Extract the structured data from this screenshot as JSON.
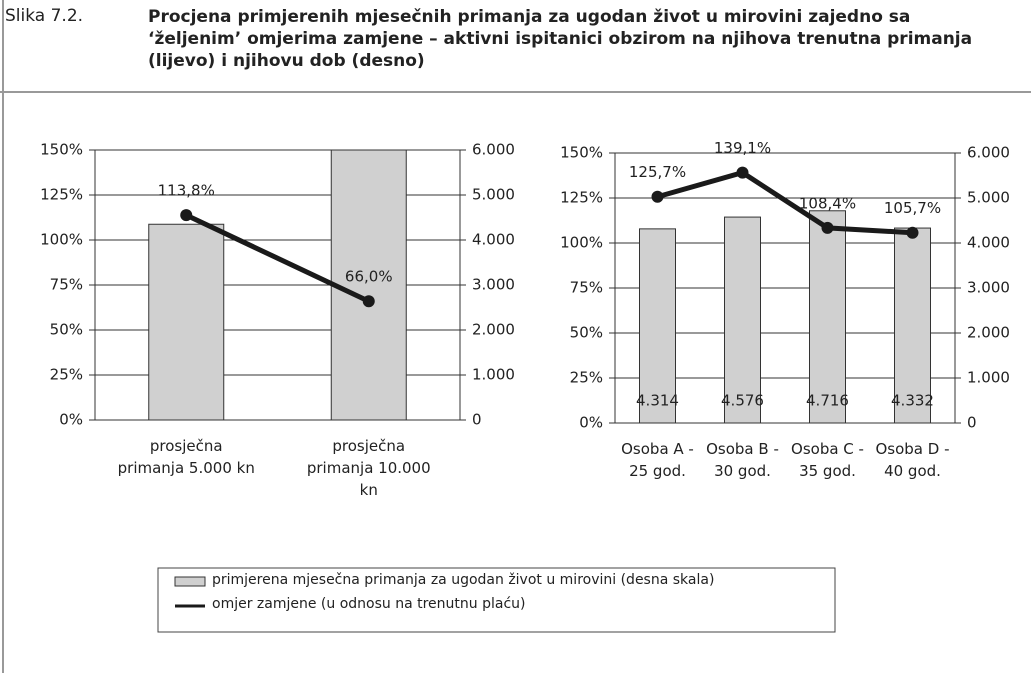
{
  "figure_label": "Slika 7.2.",
  "title": "Procjena primjerenih mjesečnih primanja za ugodan život u mirovini zajedno sa ‘željenim’ omjerima zamjene – aktivni ispitanici obzirom na njihova trenutna primanja (lijevo) i njihovu dob (desno)",
  "chart_data": [
    {
      "type": "bar_line",
      "categories": [
        "prosječna primanja 5.000 kn",
        "prosječna primanja  10.000 kn"
      ],
      "series": [
        {
          "name": "primjerena mjesečna primanja za ugodan život u mirovini (desna skala)",
          "type": "bar",
          "color": "#d0d0d0",
          "axis": "y2",
          "values": [
            4350,
            6000
          ]
        },
        {
          "name": "omjer zamjene (u odnosu na trenutnu plaću)",
          "type": "line",
          "color": "#1a1a1a",
          "values": [
            113.8,
            66.0
          ],
          "value_labels": [
            "113,8%",
            "66,0%"
          ]
        }
      ],
      "ylim": [
        0,
        150
      ],
      "yticks": [
        {
          "value": 0,
          "label": "0%"
        },
        {
          "value": 25,
          "label": "25%"
        },
        {
          "value": 50,
          "label": "50%"
        },
        {
          "value": 75,
          "label": "75%"
        },
        {
          "value": 100,
          "label": "100%"
        },
        {
          "value": 125,
          "label": "125%"
        },
        {
          "value": 150,
          "label": "150%"
        }
      ],
      "y2lim": [
        0,
        6000
      ],
      "y2ticks": [
        0,
        {
          "value": 1000,
          "label": "1.000"
        },
        {
          "value": 2000,
          "label": "2.000"
        },
        {
          "value": 3000,
          "label": "3.000"
        },
        {
          "value": 4000,
          "label": "4.000"
        },
        {
          "value": 5000,
          "label": "5.000"
        },
        {
          "value": 6000,
          "label": "6.000"
        }
      ],
      "grid": true
    },
    {
      "type": "bar_line",
      "categories": [
        "Osoba A - 25 god.",
        "Osoba B - 30 god.",
        "Osoba C - 35 god.",
        "Osoba D - 40 god."
      ],
      "series": [
        {
          "type": "bar",
          "color": "#d0d0d0",
          "axis": "y2",
          "values": [
            4314,
            4576,
            4716,
            4332
          ],
          "value_labels": [
            "4.314",
            "4.576",
            "4.716",
            "4.332"
          ]
        },
        {
          "type": "line",
          "color": "#1a1a1a",
          "values": [
            125.7,
            139.1,
            108.4,
            105.7
          ],
          "value_labels": [
            "125,7%",
            "139,1%",
            "108,4%",
            "105,7%"
          ]
        }
      ],
      "ylim": [
        0,
        150
      ],
      "yticks": [
        {
          "value": 0,
          "label": "0%"
        },
        {
          "value": 25,
          "label": "25%"
        },
        {
          "value": 50,
          "label": "50%"
        },
        {
          "value": 75,
          "label": "75%"
        },
        {
          "value": 100,
          "label": "100%"
        },
        {
          "value": 125,
          "label": "125%"
        },
        {
          "value": 150,
          "label": "150%"
        }
      ],
      "y2lim": [
        0,
        6000
      ],
      "y2ticks": [
        0,
        {
          "value": 1000,
          "label": "1.000"
        },
        {
          "value": 2000,
          "label": "2.000"
        },
        {
          "value": 3000,
          "label": "3.000"
        },
        {
          "value": 4000,
          "label": "4.000"
        },
        {
          "value": 5000,
          "label": "5.000"
        },
        {
          "value": 6000,
          "label": "6.000"
        }
      ],
      "grid": true
    }
  ]
}
